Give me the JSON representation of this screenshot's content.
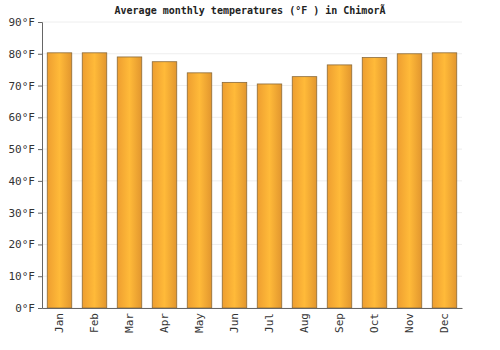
{
  "chart_data": {
    "type": "bar",
    "title": "Average monthly temperatures (°F ) in ChimorÃ",
    "categories": [
      "Jan",
      "Feb",
      "Mar",
      "Apr",
      "May",
      "Jun",
      "Jul",
      "Aug",
      "Sep",
      "Oct",
      "Nov",
      "Dec"
    ],
    "values": [
      80.3,
      80.3,
      79,
      77.5,
      74,
      71,
      70.5,
      72.8,
      76.5,
      78.8,
      80,
      80.3
    ],
    "color": "#fba733",
    "ylim": [
      0,
      90
    ],
    "yticks": [
      {
        "value": 0,
        "label": "0°F"
      },
      {
        "value": 10,
        "label": "10°F"
      },
      {
        "value": 20,
        "label": "20°F"
      },
      {
        "value": 30,
        "label": "30°F"
      },
      {
        "value": 40,
        "label": "40°F"
      },
      {
        "value": 50,
        "label": "50°F"
      },
      {
        "value": 60,
        "label": "60°F"
      },
      {
        "value": 70,
        "label": "70°F"
      },
      {
        "value": 80,
        "label": "80°F"
      },
      {
        "value": 90,
        "label": "90°F"
      }
    ],
    "grid": true
  }
}
